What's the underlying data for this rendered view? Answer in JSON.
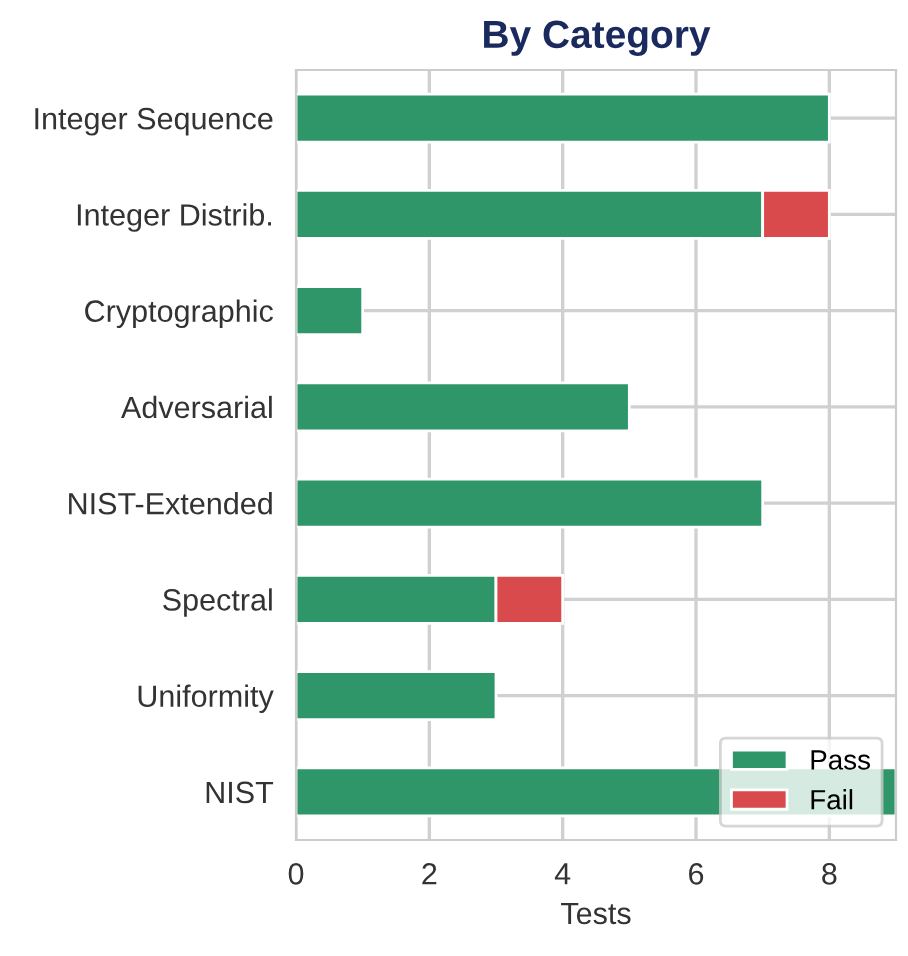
{
  "chart_data": {
    "type": "bar",
    "orientation": "horizontal",
    "stacked": true,
    "title": "By Category",
    "xlabel": "Tests",
    "categories": [
      "Integer Sequence",
      "Integer Distrib.",
      "Cryptographic",
      "Adversarial",
      "NIST-Extended",
      "Spectral",
      "Uniformity",
      "NIST"
    ],
    "series": [
      {
        "name": "Pass",
        "color": "#2e9669",
        "values": [
          8,
          7,
          1,
          5,
          7,
          3,
          3,
          9
        ]
      },
      {
        "name": "Fail",
        "color": "#d94a4d",
        "values": [
          null,
          1,
          null,
          null,
          null,
          1,
          null,
          null
        ]
      }
    ],
    "xlim": [
      0,
      9
    ],
    "xticks": [
      0,
      2,
      4,
      6,
      8
    ],
    "grid": true,
    "legend": "bottom right"
  }
}
